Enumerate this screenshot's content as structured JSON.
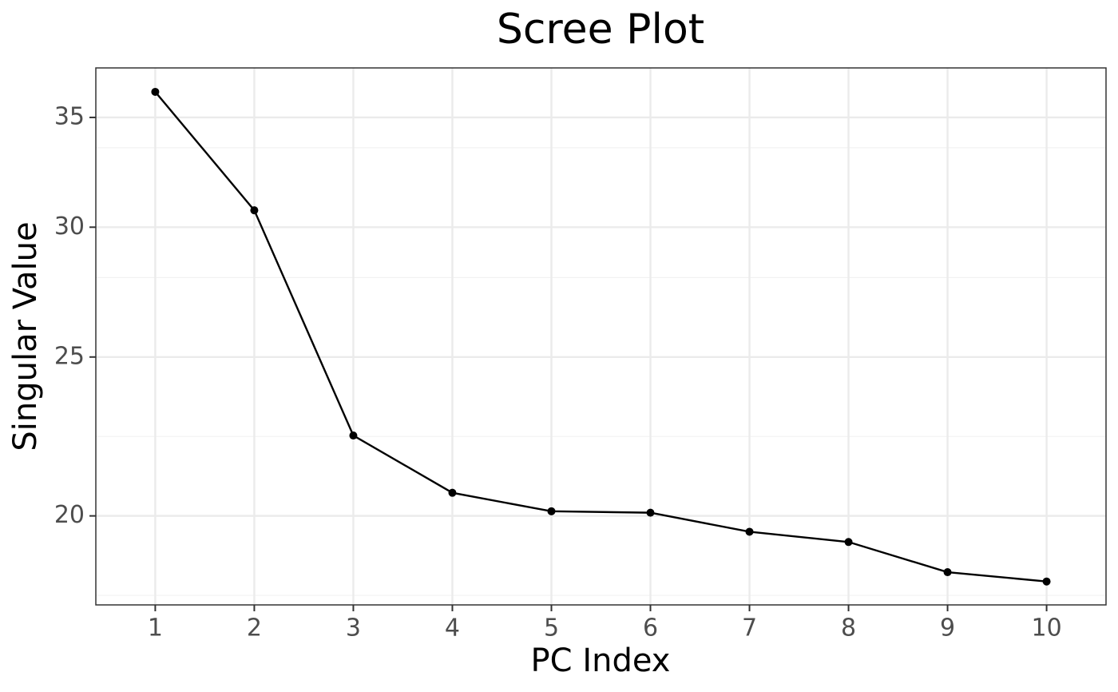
{
  "chart_data": {
    "type": "line",
    "title": "Scree Plot",
    "x_label": "PC Index",
    "y_label": "Singular Value",
    "x": [
      1,
      2,
      3,
      4,
      5,
      6,
      7,
      8,
      9,
      10
    ],
    "series": [
      {
        "name": "Singular Value",
        "color": "#000000",
        "values": [
          36.28,
          30.72,
          22.39,
          20.66,
          20.13,
          20.09,
          19.56,
          19.28,
          18.48,
          18.24
        ]
      }
    ],
    "xlim": [
      0.4,
      10.6
    ],
    "xticks": [
      1,
      2,
      3,
      4,
      5,
      6,
      7,
      8,
      9,
      10
    ],
    "ylim": [
      17.65,
      37.52
    ],
    "yticks": [
      20,
      25,
      30,
      35
    ],
    "y_log_scale": true,
    "grid": true,
    "minor_grid": true
  }
}
